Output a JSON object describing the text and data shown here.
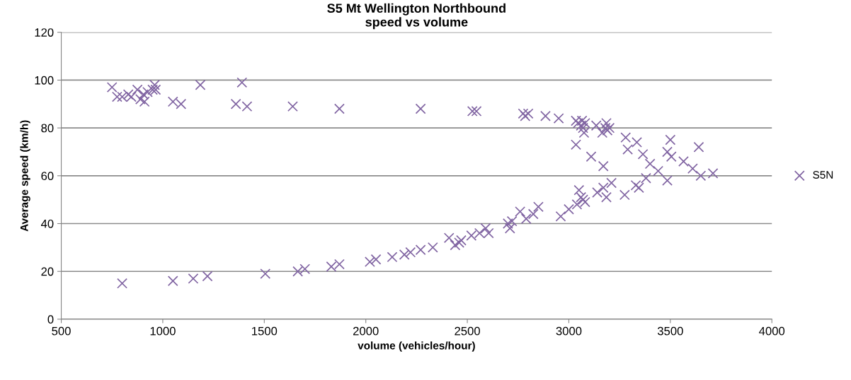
{
  "chart_data": {
    "type": "scatter",
    "title": "S5 Mt Wellington Northbound\nspeed vs volume",
    "xlabel": "volume (vehicles/hour)",
    "ylabel": "Average speed (km/h)",
    "xlim": [
      500,
      4000
    ],
    "xticks": [
      500,
      1000,
      1500,
      2000,
      2500,
      3000,
      3500,
      4000
    ],
    "ylim": [
      0,
      120
    ],
    "yticks": [
      0,
      20,
      40,
      60,
      80,
      100,
      120
    ],
    "grid": "y",
    "legend": "right",
    "marker": "cross",
    "series": [
      {
        "name": "S5N",
        "color": "#8064a2",
        "x": [
          750,
          775,
          800,
          830,
          845,
          875,
          890,
          905,
          910,
          925,
          950,
          960,
          965,
          1050,
          1090,
          1185,
          1360,
          1390,
          1415,
          1640,
          1870,
          2270,
          2525,
          2545,
          2775,
          2785,
          2800,
          2885,
          2950,
          3035,
          3045,
          3060,
          3065,
          3070,
          3075,
          3080,
          3135,
          3165,
          3180,
          3185,
          3190,
          3200,
          3035,
          3110,
          3170,
          3280,
          3290,
          3330,
          3335,
          3345,
          3365,
          3380,
          3400,
          3440,
          3485,
          3485,
          3500,
          3505,
          3565,
          3610,
          3640,
          3650,
          3710,
          800,
          1050,
          1150,
          1220,
          1505,
          1665,
          1700,
          1830,
          1870,
          2020,
          2050,
          2130,
          2190,
          2220,
          2270,
          2330,
          2410,
          2440,
          2460,
          2470,
          2520,
          2560,
          2590,
          2605,
          2700,
          2710,
          2720,
          2760,
          2790,
          2825,
          2850,
          2960,
          3000,
          3040,
          3050,
          3060,
          3070,
          3080,
          3140,
          3170,
          3185,
          3210,
          3275
        ],
        "values": [
          97,
          93,
          93,
          94,
          93,
          96,
          92,
          94,
          91,
          95,
          96,
          98,
          96,
          91,
          90,
          98,
          90,
          99,
          89,
          89,
          88,
          88,
          87,
          87,
          86,
          85,
          86,
          85,
          84,
          83,
          82,
          81,
          83,
          80,
          78,
          82,
          81,
          78,
          80,
          82,
          79,
          80,
          73,
          68,
          64,
          76,
          71,
          56,
          74,
          55,
          69,
          59,
          65,
          62,
          58,
          70,
          75,
          68,
          66,
          63,
          72,
          60,
          61,
          15,
          16,
          17,
          18,
          19,
          20,
          21,
          22,
          23,
          24,
          25,
          26,
          27,
          28,
          29,
          30,
          34,
          31,
          32,
          33,
          35,
          36,
          38,
          36,
          40,
          38,
          41,
          45,
          42,
          44,
          47,
          43,
          46,
          48,
          54,
          51,
          50,
          49,
          53,
          55,
          51,
          57,
          52
        ]
      }
    ]
  }
}
